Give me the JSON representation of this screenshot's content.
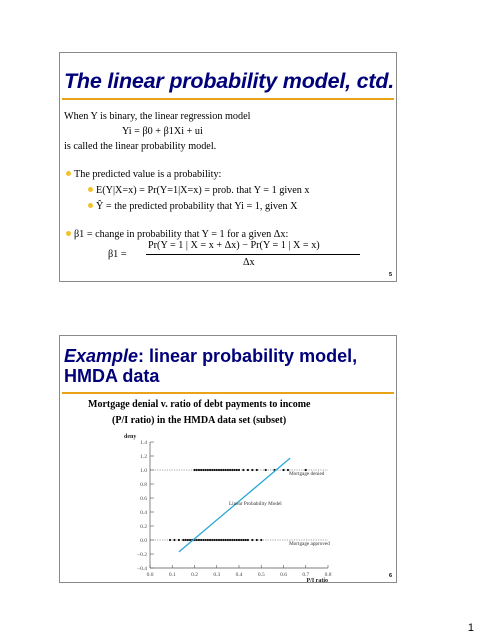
{
  "slide1": {
    "title": "The linear probability model, ctd.",
    "line1": "When Y is binary, the linear regression model",
    "line2": "Yi = β0 + β1Xi + ui",
    "line3": "is called the linear probability model.",
    "bullet1": "The predicted value is a probability:",
    "sub1": "E(Y|X=x) = Pr(Y=1|X=x) = prob. that Y = 1 given x",
    "sub2": "Ŷ = the predicted probability that Yi = 1, given X",
    "bullet2": "β1 = change in probability that Y = 1 for a given Δx:",
    "formula_lhs": "β1 =",
    "formula_num": "Pr(Y = 1 | X = x + Δx) − Pr(Y = 1 | X = x)",
    "formula_den": "Δx",
    "number": "5"
  },
  "slide2": {
    "title_emph": "Example",
    "title_rest": ": linear probability model, HMDA data",
    "caption1": "Mortgage denial v. ratio of debt payments to income",
    "caption2": "(P/I ratio) in the HMDA data set (subset)",
    "number": "6"
  },
  "page_number": "1",
  "chart_data": {
    "type": "scatter",
    "ylabel": "deny",
    "xlabel": "P/I ratio",
    "xlim": [
      0.0,
      0.8
    ],
    "ylim": [
      -0.4,
      1.4
    ],
    "x_ticks": [
      "0.0",
      "0.1",
      "0.2",
      "0.3",
      "0.4",
      "0.5",
      "0.6",
      "0.7",
      "0.8"
    ],
    "y_ticks": [
      "−0.4",
      "−0.2",
      "0.0",
      "0.2",
      "0.4",
      "0.6",
      "0.8",
      "1.0",
      "1.2",
      "1.4"
    ],
    "annotations": [
      "Mortgage denied",
      "Linear Probability Model",
      "Mortgage approved"
    ],
    "series": [
      {
        "kind": "points",
        "y": 1,
        "x": [
          0.2,
          0.21,
          0.22,
          0.23,
          0.24,
          0.25,
          0.26,
          0.27,
          0.28,
          0.29,
          0.3,
          0.31,
          0.32,
          0.33,
          0.34,
          0.35,
          0.36,
          0.37,
          0.38,
          0.39,
          0.4,
          0.42,
          0.44,
          0.46,
          0.48,
          0.52,
          0.56,
          0.6,
          0.62,
          0.7
        ]
      },
      {
        "kind": "points",
        "y": 0,
        "x": [
          0.09,
          0.11,
          0.13,
          0.15,
          0.16,
          0.17,
          0.18,
          0.19,
          0.2,
          0.21,
          0.22,
          0.23,
          0.24,
          0.25,
          0.26,
          0.27,
          0.28,
          0.29,
          0.3,
          0.31,
          0.32,
          0.33,
          0.34,
          0.35,
          0.36,
          0.37,
          0.38,
          0.39,
          0.4,
          0.41,
          0.42,
          0.43,
          0.44,
          0.46,
          0.48,
          0.5
        ]
      },
      {
        "kind": "line",
        "x": [
          0.13,
          0.63
        ],
        "y": [
          -0.17,
          1.17
        ]
      }
    ]
  }
}
